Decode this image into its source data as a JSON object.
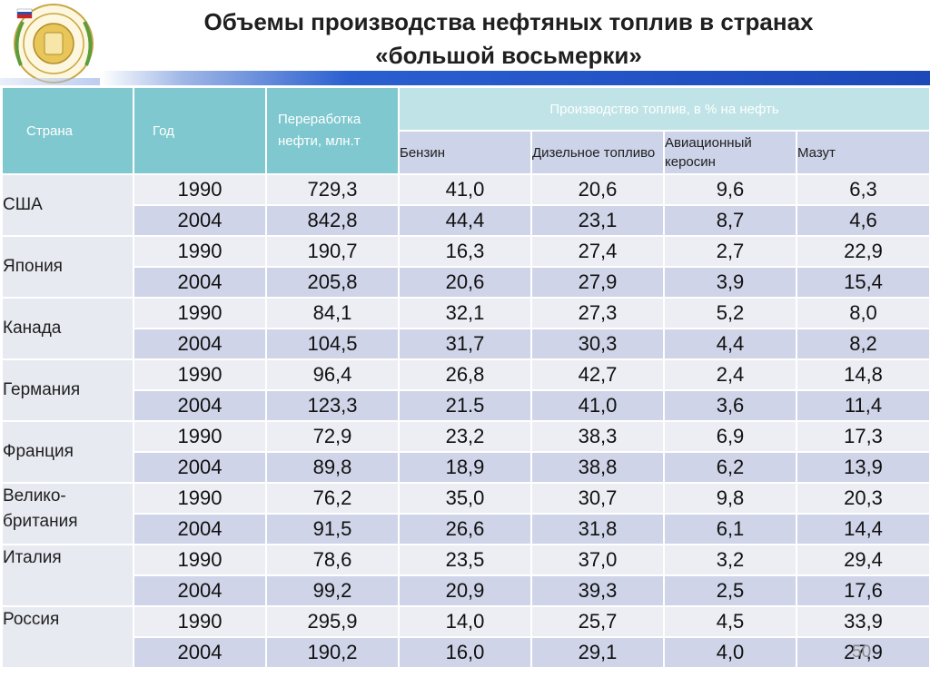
{
  "title_line1": "Объемы производства нефтяных топлив в странах",
  "title_line2": "«большой восьмерки»",
  "headers": {
    "country": "Страна",
    "year": "Год",
    "refining": "Переработка нефти, млн.т",
    "production": "Производство топлив, в % на нефть",
    "gasoline": "Бензин",
    "diesel": "Дизельное топливо",
    "jet": "Авиационный керосин",
    "fuel_oil": "Мазут"
  },
  "rows": [
    {
      "country": "США",
      "data": [
        [
          "1990",
          "729,3",
          "41,0",
          "20,6",
          "9,6",
          "6,3"
        ],
        [
          "2004",
          "842,8",
          "44,4",
          "23,1",
          "8,7",
          "4,6"
        ]
      ]
    },
    {
      "country": "Япония",
      "data": [
        [
          "1990",
          "190,7",
          "16,3",
          "27,4",
          "2,7",
          "22,9"
        ],
        [
          "2004",
          "205,8",
          "20,6",
          "27,9",
          "3,9",
          "15,4"
        ]
      ]
    },
    {
      "country": "Канада",
      "data": [
        [
          "1990",
          "84,1",
          "32,1",
          "27,3",
          "5,2",
          "8,0"
        ],
        [
          "2004",
          "104,5",
          "31,7",
          "30,3",
          "4,4",
          "8,2"
        ]
      ]
    },
    {
      "country": "Германия",
      "data": [
        [
          "1990",
          "96,4",
          "26,8",
          "42,7",
          "2,4",
          "14,8"
        ],
        [
          "2004",
          "123,3",
          "21.5",
          "41,0",
          "3,6",
          "11,4"
        ]
      ]
    },
    {
      "country": "Франция",
      "data": [
        [
          "1990",
          "72,9",
          "23,2",
          "38,3",
          "6,9",
          "17,3"
        ],
        [
          "2004",
          "89,8",
          "18,9",
          "38,8",
          "6,2",
          "13,9"
        ]
      ]
    },
    {
      "country": "Велико-британия",
      "data": [
        [
          "1990",
          "76,2",
          "35,0",
          "30,7",
          "9,8",
          "20,3"
        ],
        [
          "2004",
          "91,5",
          "26,6",
          "31,8",
          "6,1",
          "14,4"
        ]
      ]
    },
    {
      "country": "Италия",
      "data": [
        [
          "1990",
          "78,6",
          "23,5",
          "37,0",
          "3,2",
          "29,4"
        ],
        [
          "2004",
          "99,2",
          "20,9",
          "39,3",
          "2,5",
          "17,6"
        ]
      ]
    },
    {
      "country": "Россия",
      "data": [
        [
          "1990",
          "295,9",
          "14,0",
          "25,7",
          "4,5",
          "33,9"
        ],
        [
          "2004",
          "190,2",
          "16,0",
          "29,1",
          "4,0",
          "27,9"
        ]
      ]
    }
  ],
  "page_number": "50"
}
